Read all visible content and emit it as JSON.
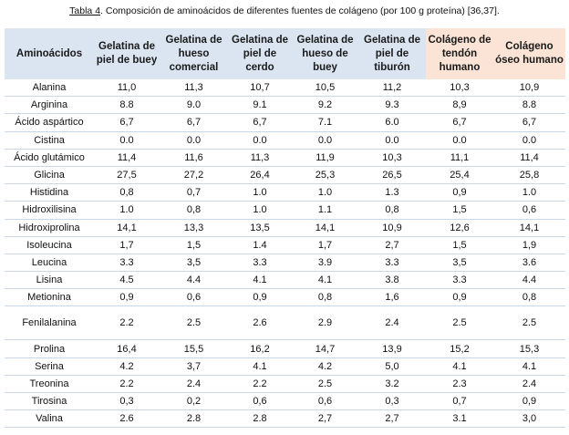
{
  "caption": {
    "label": "Tabla 4",
    "text": ". Composición de aminoácidos de diferentes fuentes de colágeno (por 100 g proteína) [36,37]."
  },
  "table": {
    "headers": [
      "Aminoácidos",
      "Gelatina de piel de buey",
      "Gelatina de hueso comercial",
      "Gelatina de piel de cerdo",
      "Gelatina de hueso de buey",
      "Gelatina de piel de tiburón",
      "Colágeno de tendón humano",
      "Colágeno óseo humano"
    ],
    "rows": [
      [
        "Alanina",
        "11,0",
        "11,3",
        "10,7",
        "10,5",
        "11,2",
        "10,3",
        "10,9"
      ],
      [
        "Arginina",
        "8.8",
        "9.0",
        "9.1",
        "9.2",
        "9.3",
        "8,9",
        "8.8"
      ],
      [
        "Ácido aspártico",
        "6,7",
        "6,7",
        "6,7",
        "7.1",
        "6.0",
        "6,7",
        "6,7"
      ],
      [
        "Cistina",
        "0.0",
        "0.0",
        "0.0",
        "0.0",
        "0.0",
        "0.0",
        "0.0"
      ],
      [
        "Ácido glutámico",
        "11,4",
        "11,6",
        "11,3",
        "11,9",
        "10,3",
        "11,1",
        "11,4"
      ],
      [
        "Glicina",
        "27,5",
        "27,2",
        "26,4",
        "25,3",
        "26,5",
        "25,4",
        "25,8"
      ],
      [
        "Histidina",
        "0,8",
        "0,7",
        "1.0",
        "1.0",
        "1.3",
        "0,9",
        "1.0"
      ],
      [
        "Hidroxilisina",
        "1.0",
        "0,8",
        "1.0",
        "1.1",
        "0,8",
        "1,5",
        "0,6"
      ],
      [
        "Hidroxiprolina",
        "14,1",
        "13,3",
        "13,5",
        "14,1",
        "10,9",
        "12,6",
        "14,1"
      ],
      [
        "Isoleucina",
        "1,7",
        "1,5",
        "1.4",
        "1,7",
        "2,7",
        "1,5",
        "1,9"
      ],
      [
        "Leucina",
        "3.3",
        "3,5",
        "3.3",
        "3.9",
        "3.3",
        "3,5",
        "3.6"
      ],
      [
        "Lisina",
        "4.5",
        "4.4",
        "4.1",
        "4.1",
        "3.8",
        "3.3",
        "4.4"
      ],
      [
        "Metionina",
        "0,9",
        "0,6",
        "0,9",
        "0,8",
        "1,6",
        "0,9",
        "0,8"
      ],
      [
        "Fenilalanina",
        "2.2",
        "2.5",
        "2.6",
        "2.9",
        "2.4",
        "2.5",
        "2.5"
      ],
      [
        "Prolina",
        "16,4",
        "15,5",
        "16,2",
        "14,7",
        "13,9",
        "15,2",
        "15,3"
      ],
      [
        "Serina",
        "4.2",
        "3,7",
        "4.1",
        "4.2",
        "5,0",
        "4.1",
        "4.1"
      ],
      [
        "Treonina",
        "2.2",
        "2.4",
        "2.2",
        "2.5",
        "3.2",
        "2.3",
        "2.4"
      ],
      [
        "Tirosina",
        "0,3",
        "0,2",
        "0,6",
        "0,6",
        "0,3",
        "0,7",
        "0,9"
      ],
      [
        "Valina",
        "2.6",
        "2.8",
        "2.8",
        "2,7",
        "2,7",
        "3.1",
        "3,0"
      ]
    ]
  }
}
